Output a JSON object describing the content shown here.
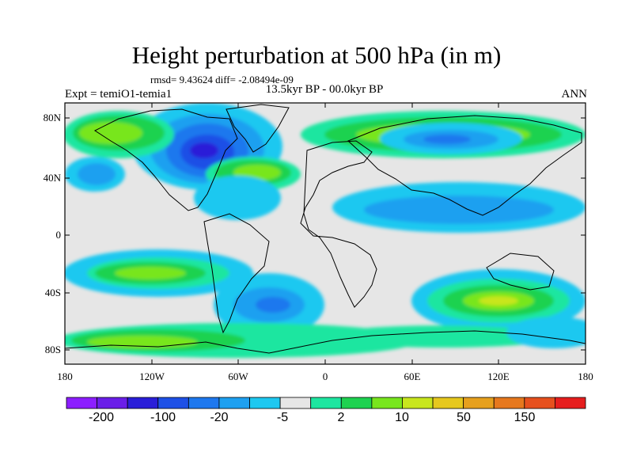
{
  "title": "Height perturbation at 500 hPa (in m)",
  "stats": "rmsd= 9.43624 diff= -2.08494e-09",
  "left_label": "Expt = temiO1-temia1",
  "center_label": "13.5kyr BP - 00.0kyr BP",
  "right_label": "ANN",
  "lat_ticks": [
    "80N",
    "40N",
    "0",
    "40S",
    "80S"
  ],
  "lon_ticks": [
    "180",
    "120W",
    "60W",
    "0",
    "60E",
    "120E",
    "180"
  ],
  "colorbar": {
    "labels": [
      "-200",
      "-100",
      "-20",
      "-5",
      "2",
      "10",
      "50",
      "150"
    ],
    "colors": [
      "#8c1eff",
      "#6a1ee8",
      "#2a1ed8",
      "#1e50e6",
      "#1e78ee",
      "#1ea0f0",
      "#1ec8f0",
      "#e6e6e6",
      "#1ee6a0",
      "#1ed250",
      "#78e61e",
      "#c8e61e",
      "#e6c81e",
      "#e6a01e",
      "#e6781e",
      "#e6501e",
      "#e61e1e"
    ]
  },
  "field_colors": {
    "neutral": "#e6e6e6",
    "n1": "#1ec8f0",
    "n2": "#1ea0f0",
    "n3": "#1e78ee",
    "n4": "#1e50e6",
    "n5": "#2a1ed8",
    "p1": "#1ee6a0",
    "p2": "#1ed250",
    "p3": "#78e61e",
    "p4": "#c8e61e",
    "p5": "#e6c81e",
    "p6": "#e6a01e"
  }
}
